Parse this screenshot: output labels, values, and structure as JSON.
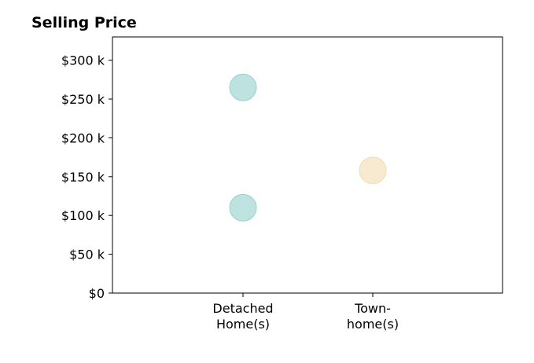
{
  "chart_data": {
    "type": "scatter",
    "title": "Selling Price",
    "xlabel": "",
    "ylabel": "",
    "categories": [
      [
        "Detached",
        "Home(s)"
      ],
      [
        "Town-",
        "home(s)"
      ]
    ],
    "ylim": [
      0,
      330000
    ],
    "y_ticks": [
      0,
      50000,
      100000,
      150000,
      200000,
      250000,
      300000
    ],
    "y_tick_labels": [
      "$0",
      "$50 k",
      "$100 k",
      "$150 k",
      "$200 k",
      "$250 k",
      "$300 k"
    ],
    "grid": false,
    "legend": "none",
    "points": [
      {
        "category": 0,
        "value": 265000,
        "color": "#bde2df",
        "stroke": "#9ccfcb"
      },
      {
        "category": 0,
        "value": 110000,
        "color": "#bde2df",
        "stroke": "#9ccfcb"
      },
      {
        "category": 1,
        "value": 158000,
        "color": "#f8ead0",
        "stroke": "#efdcb4"
      }
    ]
  }
}
